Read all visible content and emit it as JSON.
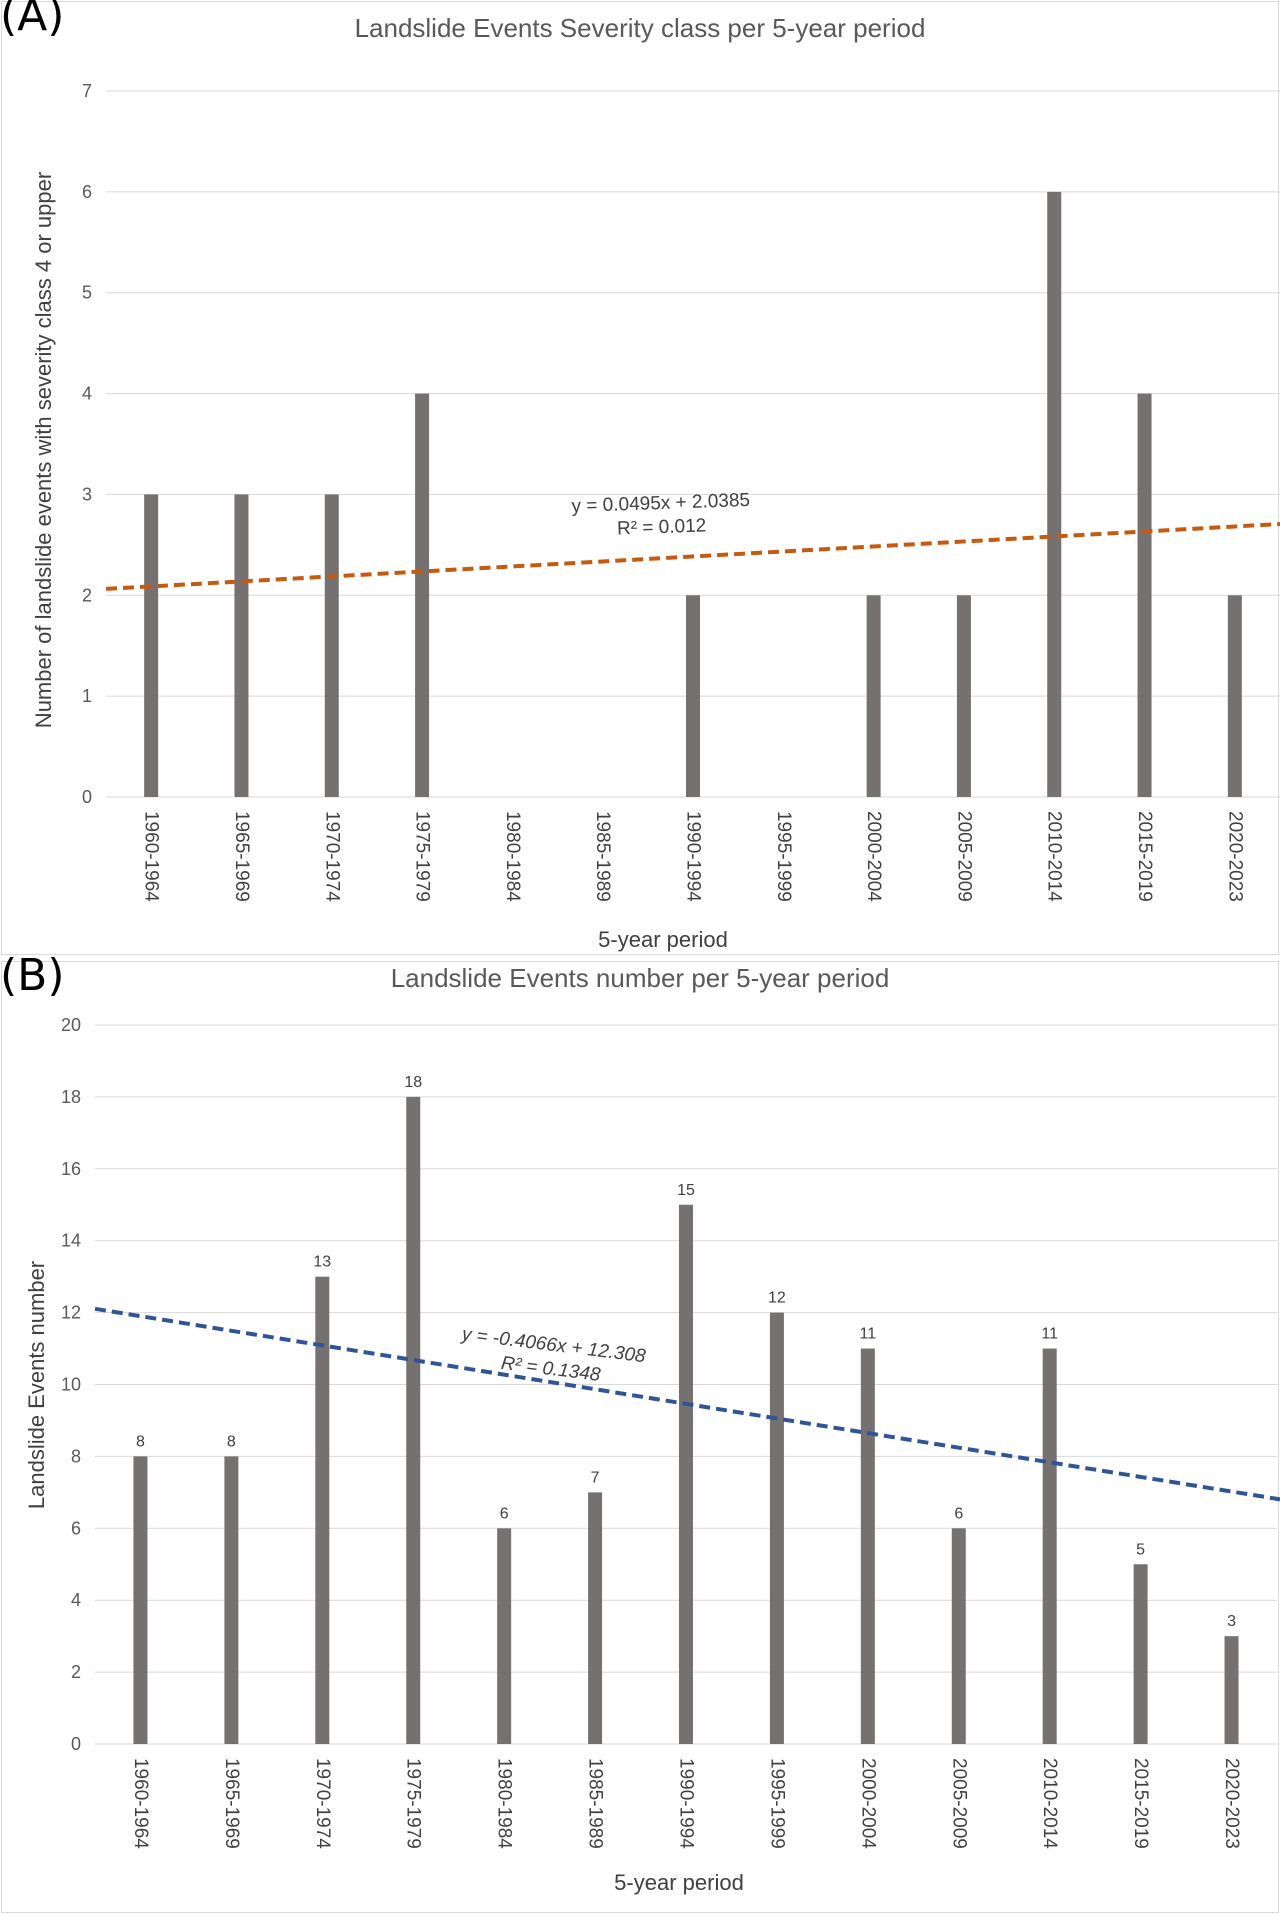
{
  "chart_data": [
    {
      "panel_label": "(A)",
      "type": "bar",
      "title": "Landslide Events Severity class per 5-year period",
      "xlabel": "5-year period",
      "ylabel": "Number of landslide events with severity class 4 or upper",
      "categories": [
        "1960-1964",
        "1965-1969",
        "1970-1974",
        "1975-1979",
        "1980-1984",
        "1985-1989",
        "1990-1994",
        "1995-1999",
        "2000-2004",
        "2005-2009",
        "2010-2014",
        "2015-2019",
        "2020-2023"
      ],
      "values": [
        3,
        3,
        3,
        4,
        0,
        0,
        2,
        0,
        2,
        2,
        6,
        4,
        2
      ],
      "ylim": [
        0,
        7
      ],
      "yticks": [
        "0",
        "1",
        "2",
        "3",
        "4",
        "5",
        "6",
        "7"
      ],
      "grid": true,
      "data_labels": false,
      "trendline": {
        "slope": 0.0495,
        "intercept": 2.0385,
        "equation": "y = 0.0495x + 2.0385",
        "r2": "R² = 0.012",
        "color": "#C55A11",
        "style": "dashed"
      },
      "bar_color": "#767171"
    },
    {
      "panel_label": "(B)",
      "type": "bar",
      "title": "Landslide Events number per 5-year period",
      "xlabel": "5-year period",
      "ylabel": "Landslide Events number",
      "categories": [
        "1960-1964",
        "1965-1969",
        "1970-1974",
        "1975-1979",
        "1980-1984",
        "1985-1989",
        "1990-1994",
        "1995-1999",
        "2000-2004",
        "2005-2009",
        "2010-2014",
        "2015-2019",
        "2020-2023"
      ],
      "values": [
        8,
        8,
        13,
        18,
        6,
        7,
        15,
        12,
        11,
        6,
        11,
        5,
        3
      ],
      "ylim": [
        0,
        20
      ],
      "yticks": [
        "0",
        "2",
        "4",
        "6",
        "8",
        "10",
        "12",
        "14",
        "16",
        "18",
        "20"
      ],
      "grid": true,
      "data_labels": true,
      "trendline": {
        "slope": -0.4066,
        "intercept": 12.308,
        "equation": "y = -0.4066x + 12.308",
        "r2": "R² = 0.1348",
        "color": "#2F5597",
        "style": "dashed"
      },
      "bar_color": "#767171"
    }
  ]
}
